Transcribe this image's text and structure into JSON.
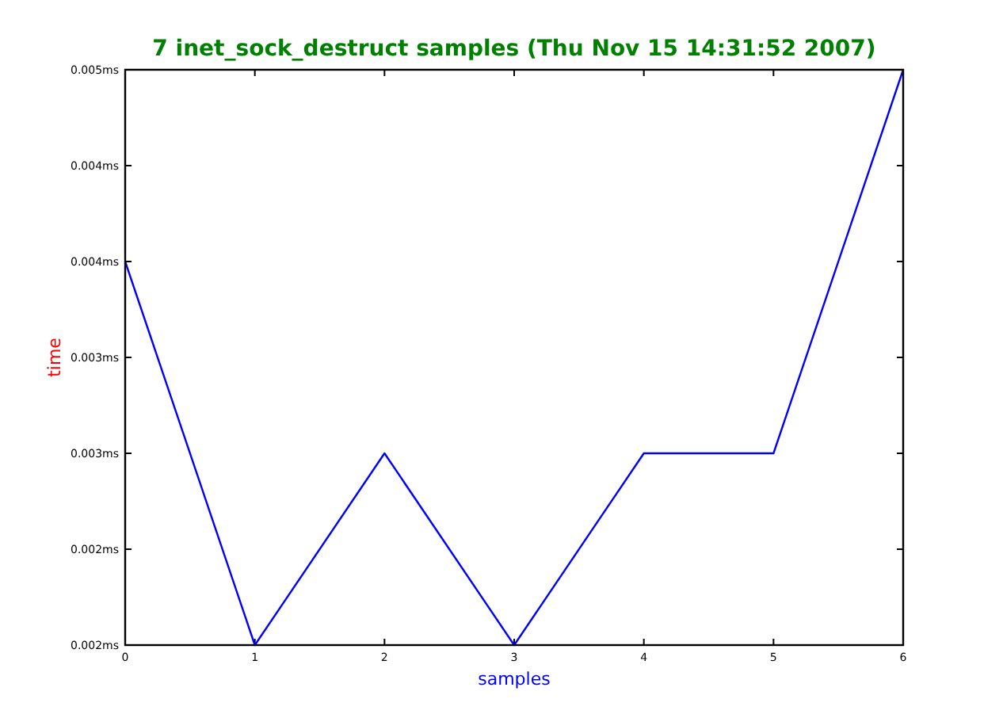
{
  "chart_data": {
    "type": "line",
    "title": "7 inet_sock_destruct samples (Thu Nov 15 14:31:52 2007)",
    "xlabel": "samples",
    "ylabel": "time",
    "x": [
      0,
      1,
      2,
      3,
      4,
      5,
      6
    ],
    "series": [
      {
        "color": "#0000ff",
        "values": [
          0.004,
          0.002,
          0.003,
          0.002,
          0.003,
          0.003,
          0.005
        ]
      }
    ],
    "xlim": [
      0,
      6
    ],
    "xticks": [
      0,
      1,
      2,
      3,
      4,
      5,
      6
    ],
    "ylim": [
      0.002,
      0.005
    ],
    "yticks": [
      {
        "value": 0.002,
        "label": "0.002ms"
      },
      {
        "value": 0.0025,
        "label": "0.002ms"
      },
      {
        "value": 0.003,
        "label": "0.003ms"
      },
      {
        "value": 0.0035,
        "label": "0.003ms"
      },
      {
        "value": 0.004,
        "label": "0.004ms"
      },
      {
        "value": 0.0045,
        "label": "0.004ms"
      },
      {
        "value": 0.005,
        "label": "0.005ms"
      }
    ],
    "grid": false,
    "marker": "none",
    "line_style": "solid"
  }
}
